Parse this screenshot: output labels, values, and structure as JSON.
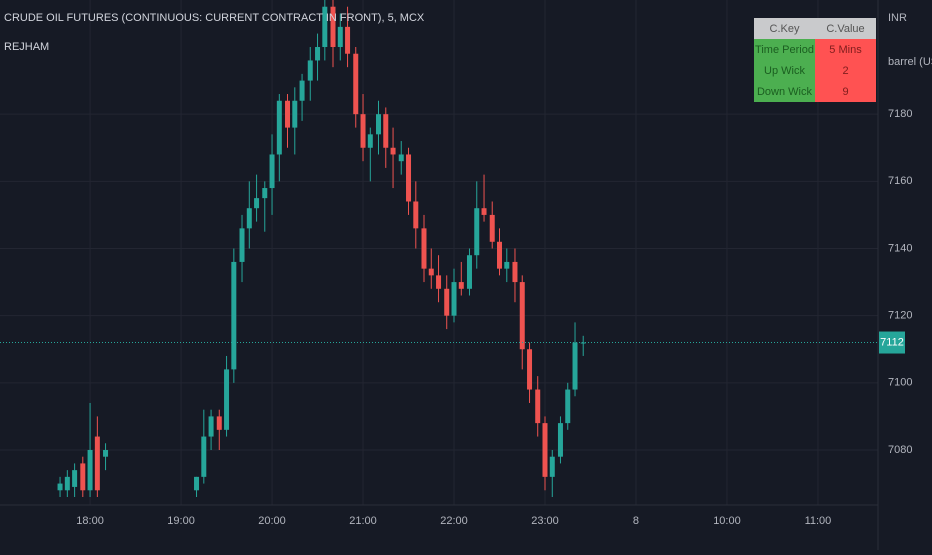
{
  "chart_data": {
    "type": "candlestick",
    "title": "CRUDE OIL FUTURES (CONTINUOUS: CURRENT CONTRACT IN FRONT), 5, MCX",
    "subtitle": "REJHAM",
    "currency": "INR",
    "unit": "barrel (US)",
    "last_price": 7112,
    "up_color": "#26a69a",
    "down_color": "#ef5350",
    "grid": true,
    "xlim": [
      17.01,
      26.66
    ],
    "xticks": [
      {
        "value": 18,
        "label": "18:00"
      },
      {
        "value": 19,
        "label": "19:00"
      },
      {
        "value": 20,
        "label": "20:00"
      },
      {
        "value": 21,
        "label": "21:00"
      },
      {
        "value": 22,
        "label": "22:00"
      },
      {
        "value": 23,
        "label": "23:00"
      },
      {
        "value": 24,
        "label": "8"
      },
      {
        "value": 25,
        "label": "10:00"
      },
      {
        "value": 26,
        "label": "11:00"
      }
    ],
    "ylim": [
      7066,
      7214
    ],
    "yticks": [
      7080,
      7100,
      7120,
      7140,
      7160,
      7180
    ],
    "x": [
      17.67,
      17.75,
      17.83,
      17.92,
      18.0,
      18.08,
      18.17,
      19.17,
      19.25,
      19.33,
      19.42,
      19.5,
      19.58,
      19.67,
      19.75,
      19.83,
      19.92,
      20.0,
      20.08,
      20.17,
      20.25,
      20.33,
      20.42,
      20.5,
      20.58,
      20.67,
      20.75,
      20.83,
      20.92,
      21.0,
      21.08,
      21.17,
      21.25,
      21.33,
      21.42,
      21.5,
      21.58,
      21.67,
      21.75,
      21.83,
      21.92,
      22.0,
      22.08,
      22.17,
      22.25,
      22.33,
      22.42,
      22.5,
      22.58,
      22.67,
      22.75,
      22.83,
      22.92,
      23.0,
      23.08,
      23.17,
      23.25,
      23.33,
      23.42
    ],
    "open": [
      7068,
      7068,
      7069,
      7076,
      7068,
      7084,
      7078,
      7068,
      7072,
      7084,
      7090,
      7086,
      7104,
      7136,
      7146,
      7152,
      7155,
      7158,
      7168,
      7184,
      7176,
      7184,
      7190,
      7196,
      7200,
      7212,
      7200,
      7206,
      7198,
      7180,
      7170,
      7174,
      7180,
      7170,
      7166,
      7168,
      7154,
      7146,
      7134,
      7132,
      7128,
      7120,
      7130,
      7128,
      7138,
      7152,
      7150,
      7142,
      7134,
      7136,
      7130,
      7110,
      7098,
      7088,
      7072,
      7078,
      7088,
      7098,
      7112
    ],
    "high": [
      7072,
      7074,
      7076,
      7078,
      7094,
      7090,
      7082,
      7072,
      7092,
      7092,
      7092,
      7108,
      7140,
      7150,
      7160,
      7162,
      7160,
      7174,
      7186,
      7186,
      7188,
      7192,
      7200,
      7204,
      7214,
      7214,
      7210,
      7212,
      7200,
      7186,
      7176,
      7184,
      7182,
      7176,
      7172,
      7170,
      7160,
      7150,
      7140,
      7138,
      7132,
      7134,
      7136,
      7140,
      7160,
      7162,
      7154,
      7146,
      7140,
      7140,
      7132,
      7112,
      7102,
      7090,
      7080,
      7090,
      7100,
      7118,
      7114
    ],
    "low": [
      7066,
      7066,
      7066,
      7066,
      7066,
      7066,
      7074,
      7066,
      7070,
      7080,
      7080,
      7084,
      7100,
      7130,
      7140,
      7148,
      7145,
      7150,
      7160,
      7170,
      7168,
      7178,
      7184,
      7190,
      7196,
      7194,
      7196,
      7194,
      7176,
      7166,
      7160,
      7168,
      7164,
      7158,
      7162,
      7150,
      7140,
      7130,
      7128,
      7124,
      7116,
      7118,
      7126,
      7126,
      7134,
      7148,
      7140,
      7132,
      7130,
      7124,
      7104,
      7094,
      7084,
      7068,
      7066,
      7076,
      7086,
      7096,
      7108
    ],
    "close": [
      7070,
      7072,
      7074,
      7068,
      7080,
      7068,
      7080,
      7072,
      7084,
      7090,
      7086,
      7104,
      7136,
      7146,
      7152,
      7155,
      7158,
      7168,
      7184,
      7176,
      7184,
      7190,
      7196,
      7200,
      7212,
      7200,
      7206,
      7198,
      7180,
      7170,
      7174,
      7180,
      7170,
      7168,
      7168,
      7154,
      7146,
      7134,
      7132,
      7128,
      7120,
      7130,
      7128,
      7138,
      7152,
      7150,
      7142,
      7134,
      7136,
      7130,
      7110,
      7098,
      7088,
      7072,
      7078,
      7088,
      7098,
      7112,
      7112
    ]
  },
  "table": {
    "header": [
      "C.Key",
      "C.Value"
    ],
    "rows": [
      [
        "Time Period",
        "5 Mins"
      ],
      [
        "Up Wick",
        "2"
      ],
      [
        "Down Wick",
        "9"
      ]
    ]
  }
}
